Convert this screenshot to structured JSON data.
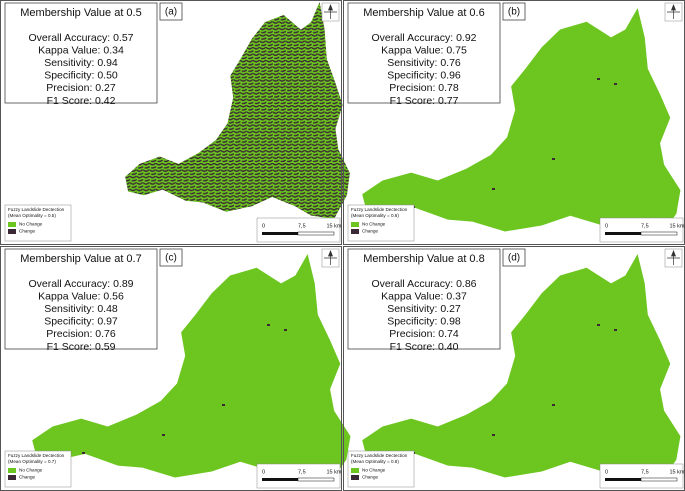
{
  "panels": [
    {
      "title": "Membership Value at 0.5",
      "label": "(a)",
      "metrics": [
        "Overall Accuracy: 0.57",
        "Kappa Value: 0.34",
        "Sensitivity: 0.94",
        "Specificity: 0.50",
        "Precision: 0.27",
        "F1 Score: 0.42"
      ],
      "legend": {
        "title": "Fuzzy Landslide Dectection",
        "subtitle": "(Mean Optimality = 0.5)",
        "items": [
          "No Change",
          "Change"
        ]
      },
      "scale": [
        "0",
        "7,5",
        "15 km"
      ]
    },
    {
      "title": "Membership Value at 0.6",
      "label": "(b)",
      "metrics": [
        "Overall Accuracy: 0.92",
        "Kappa Value: 0.75",
        "Sensitivity: 0.76",
        "Specificity: 0.96",
        "Precision: 0.78",
        "F1 Score: 0.77"
      ],
      "legend": {
        "title": "Fuzzy Landslide Dectection",
        "subtitle": "(Mean Optimality = 0.6)",
        "items": [
          "No Change",
          "Change"
        ]
      },
      "scale": [
        "0",
        "7,5",
        "15 km"
      ]
    },
    {
      "title": "Membership Value at 0.7",
      "label": "(c)",
      "metrics": [
        "Overall Accuracy: 0.89",
        "Kappa Value: 0.56",
        "Sensitivity: 0.48",
        "Specificity: 0.97",
        "Precision: 0.76",
        "F1 Score: 0.59"
      ],
      "legend": {
        "title": "Fuzzy Landslide Dectection",
        "subtitle": "(Mean Optimality = 0.7)",
        "items": [
          "No Change",
          "Change"
        ]
      },
      "scale": [
        "0",
        "7,5",
        "15 km"
      ]
    },
    {
      "title": "Membership Value at 0.8",
      "label": "(d)",
      "metrics": [
        "Overall Accuracy: 0.86",
        "Kappa Value: 0.37",
        "Sensitivity: 0.27",
        "Specificity: 0.98",
        "Precision: 0.74",
        "F1 Score: 0.40"
      ],
      "legend": {
        "title": "Fuzzy Landslide Dectection",
        "subtitle": "(Mean Optimality = 0.8)",
        "items": [
          "No Change",
          "Change"
        ]
      },
      "scale": [
        "0",
        "7,5",
        "15 km"
      ]
    }
  ]
}
